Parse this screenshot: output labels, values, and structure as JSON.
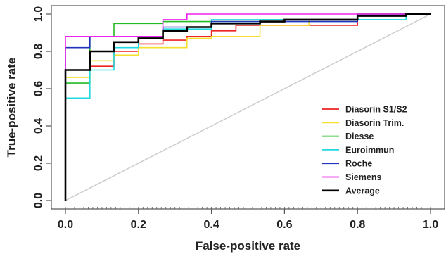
{
  "chart_data": {
    "type": "line",
    "title": "",
    "xlabel": "False-positive rate",
    "ylabel": "True-positive rate",
    "xlim": [
      0,
      1
    ],
    "ylim": [
      0,
      1
    ],
    "x_ticks": [
      "0.0",
      "0.2",
      "0.4",
      "0.6",
      "0.8",
      "1.0"
    ],
    "y_ticks": [
      "0.0",
      "0.2",
      "0.4",
      "0.6",
      "0.8",
      "1.0"
    ],
    "grid": false,
    "legend_position": "bottom-right",
    "reference_line": {
      "x": [
        0,
        1
      ],
      "y": [
        0,
        1
      ],
      "color": "#cccccc"
    },
    "series": [
      {
        "name": "Diasorin S1/S2",
        "color": "#ee2222",
        "x": [
          0,
          0,
          0.067,
          0.067,
          0.133,
          0.133,
          0.2,
          0.2,
          0.267,
          0.267,
          0.333,
          0.333,
          0.4,
          0.4,
          0.467,
          0.467,
          0.8,
          0.8,
          0.933,
          0.933,
          1.0
        ],
        "y": [
          0,
          0.7,
          0.7,
          0.72,
          0.72,
          0.8,
          0.8,
          0.84,
          0.84,
          0.86,
          0.86,
          0.88,
          0.88,
          0.91,
          0.91,
          0.94,
          0.94,
          0.99,
          0.99,
          1.0,
          1.0
        ]
      },
      {
        "name": "Diasorin Trim.",
        "color": "#f5e030",
        "x": [
          0,
          0,
          0.067,
          0.067,
          0.133,
          0.133,
          0.2,
          0.2,
          0.333,
          0.333,
          0.4,
          0.4,
          0.533,
          0.533,
          0.667,
          0.667,
          0.8,
          0.8,
          1.0
        ],
        "y": [
          0,
          0.66,
          0.66,
          0.75,
          0.75,
          0.78,
          0.78,
          0.82,
          0.82,
          0.87,
          0.87,
          0.88,
          0.88,
          0.94,
          0.94,
          0.97,
          0.97,
          1.0,
          1.0
        ]
      },
      {
        "name": "Diesse",
        "color": "#22bb22",
        "x": [
          0,
          0,
          0.067,
          0.067,
          0.133,
          0.133,
          0.267,
          0.267,
          0.533,
          0.533,
          0.8,
          0.8,
          1.0
        ],
        "y": [
          0,
          0.63,
          0.63,
          0.88,
          0.88,
          0.95,
          0.95,
          0.96,
          0.96,
          0.97,
          0.97,
          1.0,
          1.0
        ]
      },
      {
        "name": "Euroimmun",
        "color": "#22d8e0",
        "x": [
          0,
          0,
          0.067,
          0.067,
          0.133,
          0.133,
          0.2,
          0.2,
          0.267,
          0.267,
          0.4,
          0.4,
          0.533,
          0.533,
          0.8,
          0.8,
          0.933,
          0.933,
          1.0
        ],
        "y": [
          0,
          0.55,
          0.55,
          0.7,
          0.7,
          0.82,
          0.82,
          0.88,
          0.88,
          0.92,
          0.92,
          0.97,
          0.97,
          0.97,
          0.97,
          0.97,
          0.97,
          1.0,
          1.0
        ]
      },
      {
        "name": "Roche",
        "color": "#2233bb",
        "x": [
          0,
          0,
          0.067,
          0.067,
          0.2,
          0.2,
          0.267,
          0.267,
          0.4,
          0.4,
          0.8,
          0.8,
          1.0
        ],
        "y": [
          0,
          0.82,
          0.82,
          0.88,
          0.88,
          0.88,
          0.88,
          0.93,
          0.93,
          0.96,
          0.96,
          1.0,
          1.0
        ]
      },
      {
        "name": "Siemens",
        "color": "#ee22ee",
        "x": [
          0,
          0,
          0.267,
          0.267,
          0.333,
          0.333,
          1.0
        ],
        "y": [
          0,
          0.88,
          0.88,
          0.97,
          0.97,
          1.0,
          1.0
        ]
      },
      {
        "name": "Average",
        "color": "#000000",
        "x": [
          0,
          0,
          0.067,
          0.067,
          0.133,
          0.133,
          0.2,
          0.2,
          0.267,
          0.267,
          0.333,
          0.333,
          0.4,
          0.4,
          0.533,
          0.533,
          0.6,
          0.6,
          0.8,
          0.8,
          0.933,
          0.933,
          1.0
        ],
        "y": [
          0,
          0.7,
          0.7,
          0.8,
          0.8,
          0.85,
          0.85,
          0.87,
          0.87,
          0.91,
          0.91,
          0.93,
          0.93,
          0.95,
          0.95,
          0.96,
          0.96,
          0.97,
          0.97,
          0.99,
          0.99,
          1.0,
          1.0
        ]
      }
    ]
  }
}
